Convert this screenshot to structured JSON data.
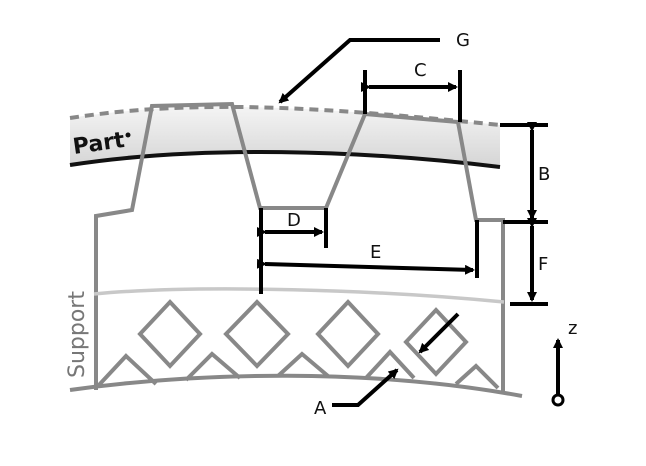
{
  "labels": {
    "part": "Part",
    "support": "Support",
    "A": "A",
    "B": "B",
    "C": "C",
    "D": "D",
    "E": "E",
    "F": "F",
    "G": "G",
    "axis": "z"
  },
  "colors": {
    "part_fill": "#e3e3e3",
    "part_outline": "#111111",
    "structure": "#888888",
    "interface_line": "#c8c8c8",
    "dimension": "#000000"
  }
}
